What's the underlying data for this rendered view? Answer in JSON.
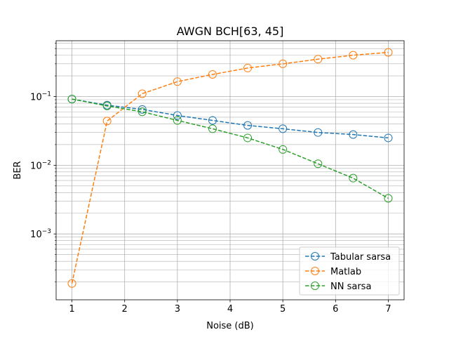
{
  "chart_data": {
    "type": "line",
    "title": "AWGN BCH[63, 45]",
    "xlabel": "Noise (dB)",
    "ylabel": "BER",
    "yscale": "log",
    "xlim": [
      0.7,
      7.3
    ],
    "ylim": [
      0.00011,
      0.65
    ],
    "grid": "both",
    "legend_position": "lower-right",
    "x_ticks": [
      1,
      2,
      3,
      4,
      5,
      6,
      7
    ],
    "y_major_ticks": [
      {
        "value": 0.001,
        "base": "10",
        "exp": "−3"
      },
      {
        "value": 0.01,
        "base": "10",
        "exp": "−2"
      },
      {
        "value": 0.1,
        "base": "10",
        "exp": "−1"
      }
    ],
    "x": [
      1,
      1.667,
      2.333,
      3,
      3.667,
      4.333,
      5,
      5.667,
      6.333,
      7
    ],
    "series": [
      {
        "name": "Tabular sarsa",
        "color": "#1f77b4",
        "values": [
          0.092,
          0.075,
          0.065,
          0.053,
          0.045,
          0.038,
          0.034,
          0.03,
          0.028,
          0.025
        ]
      },
      {
        "name": "Matlab",
        "color": "#ff7f0e",
        "values": [
          0.00019,
          0.044,
          0.11,
          0.165,
          0.21,
          0.26,
          0.3,
          0.35,
          0.4,
          0.44
        ]
      },
      {
        "name": "NN sarsa",
        "color": "#2ca02c",
        "values": [
          0.092,
          0.073,
          0.06,
          0.045,
          0.034,
          0.025,
          0.017,
          0.0105,
          0.0065,
          0.0033
        ]
      }
    ]
  }
}
